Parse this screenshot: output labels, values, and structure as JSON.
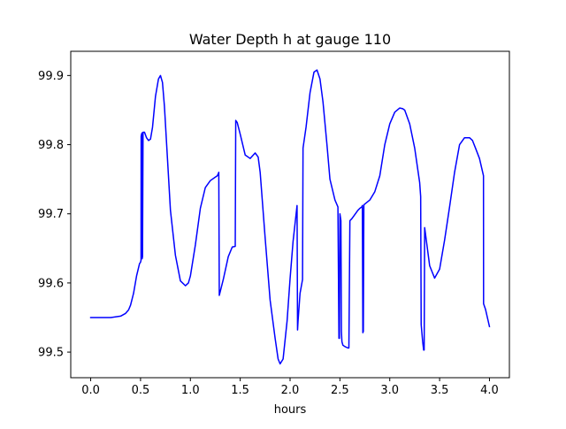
{
  "chart_data": {
    "type": "line",
    "title": "Water Depth h at gauge 110",
    "xlabel": "hours",
    "ylabel": "",
    "xlim": [
      -0.2,
      4.2
    ],
    "ylim": [
      99.463,
      99.935
    ],
    "xticks": [
      0.0,
      0.5,
      1.0,
      1.5,
      2.0,
      2.5,
      3.0,
      3.5,
      4.0
    ],
    "xtick_labels": [
      "0.0",
      "0.5",
      "1.0",
      "1.5",
      "2.0",
      "2.5",
      "3.0",
      "3.5",
      "4.0"
    ],
    "yticks": [
      99.5,
      99.6,
      99.7,
      99.8,
      99.9
    ],
    "ytick_labels": [
      "99.5",
      "99.6",
      "99.7",
      "99.8",
      "99.9"
    ],
    "grid": false,
    "series": [
      {
        "color": "#0000ff",
        "x": [
          0.0,
          0.2,
          0.3,
          0.35,
          0.38,
          0.4,
          0.43,
          0.46,
          0.49,
          0.5,
          0.505,
          0.506,
          0.51,
          0.515,
          0.516,
          0.52,
          0.525,
          0.526,
          0.53,
          0.54,
          0.56,
          0.58,
          0.6,
          0.62,
          0.65,
          0.68,
          0.7,
          0.72,
          0.74,
          0.77,
          0.8,
          0.85,
          0.9,
          0.95,
          0.98,
          1.0,
          1.05,
          1.1,
          1.15,
          1.2,
          1.25,
          1.27,
          1.28,
          1.285,
          1.29,
          1.33,
          1.38,
          1.42,
          1.45,
          1.455,
          1.47,
          1.5,
          1.55,
          1.6,
          1.65,
          1.68,
          1.7,
          1.75,
          1.8,
          1.85,
          1.88,
          1.9,
          1.93,
          1.97,
          2.0,
          2.03,
          2.07,
          2.075,
          2.08,
          2.1,
          2.125,
          2.13,
          2.16,
          2.2,
          2.24,
          2.27,
          2.3,
          2.33,
          2.37,
          2.4,
          2.45,
          2.48,
          2.49,
          2.495,
          2.5,
          2.505,
          2.51,
          2.515,
          2.52,
          2.53,
          2.55,
          2.58,
          2.59,
          2.6,
          2.62,
          2.64,
          2.68,
          2.7,
          2.72,
          2.725,
          2.73,
          2.735,
          2.74,
          2.8,
          2.85,
          2.9,
          2.95,
          3.0,
          3.05,
          3.1,
          3.13,
          3.15,
          3.2,
          3.25,
          3.3,
          3.31,
          3.315,
          3.33,
          3.34,
          3.345,
          3.35,
          3.4,
          3.45,
          3.5,
          3.55,
          3.6,
          3.65,
          3.7,
          3.75,
          3.8,
          3.83,
          3.86,
          3.9,
          3.94,
          3.941,
          3.96,
          4.0
        ],
        "y": [
          99.55,
          99.55,
          99.552,
          99.556,
          99.561,
          99.568,
          99.585,
          99.61,
          99.628,
          99.63,
          99.633,
          99.812,
          99.815,
          99.817,
          99.635,
          99.638,
          99.815,
          99.818,
          99.818,
          99.818,
          99.81,
          99.806,
          99.808,
          99.825,
          99.87,
          99.895,
          99.9,
          99.89,
          99.855,
          99.78,
          99.705,
          99.64,
          99.603,
          99.596,
          99.6,
          99.61,
          99.655,
          99.708,
          99.738,
          99.748,
          99.753,
          99.755,
          99.758,
          99.76,
          99.582,
          99.605,
          99.638,
          99.652,
          99.653,
          99.835,
          99.832,
          99.815,
          99.785,
          99.78,
          99.788,
          99.782,
          99.76,
          99.665,
          99.575,
          99.52,
          99.49,
          99.483,
          99.49,
          99.545,
          99.606,
          99.66,
          99.712,
          99.532,
          99.545,
          99.585,
          99.605,
          99.795,
          99.825,
          99.875,
          99.905,
          99.908,
          99.895,
          99.862,
          99.8,
          99.75,
          99.72,
          99.71,
          99.52,
          99.52,
          99.7,
          99.695,
          99.69,
          99.53,
          99.515,
          99.51,
          99.508,
          99.506,
          99.506,
          99.69,
          99.693,
          99.697,
          99.705,
          99.708,
          99.71,
          99.712,
          99.528,
          99.53,
          99.713,
          99.72,
          99.732,
          99.755,
          99.8,
          99.83,
          99.847,
          99.853,
          99.852,
          99.85,
          99.83,
          99.795,
          99.745,
          99.725,
          99.54,
          99.515,
          99.503,
          99.503,
          99.68,
          99.625,
          99.607,
          99.62,
          99.662,
          99.71,
          99.76,
          99.8,
          99.81,
          99.81,
          99.806,
          99.795,
          99.78,
          99.755,
          99.57,
          99.562,
          99.537
        ]
      }
    ]
  }
}
